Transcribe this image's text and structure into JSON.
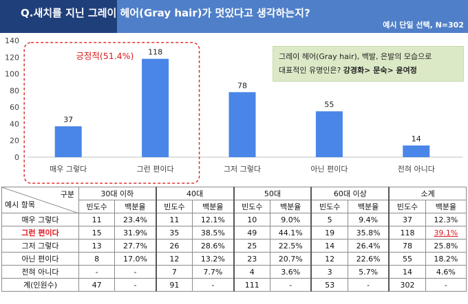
{
  "header": {
    "title": "Q.새치를 지닌 그레이 헤어(Gray hair)가 멋있다고 생각하는지?",
    "subtitle": "예시 단일 선택, N=302"
  },
  "note": {
    "line1": "그레이 헤어(Gray hair), 백발, 은발의 모습으로",
    "line2_prefix": "대표적인 유명인은? ",
    "line2_bold": "강경화> 문숙> 윤여정"
  },
  "positive_label": "긍정적(51.4%)",
  "chart_data": {
    "type": "bar",
    "categories": [
      "매우 그렇다",
      "그런 편이다",
      "그저 그렇다",
      "아닌 편이다",
      "전혀 아니다"
    ],
    "values": [
      37,
      118,
      78,
      55,
      14
    ],
    "ylim": [
      0,
      140
    ],
    "yticks": [
      0,
      20,
      40,
      60,
      80,
      100,
      120,
      140
    ],
    "bar_color": "#4a86e8",
    "grid": false
  },
  "table": {
    "corner_top": "구분",
    "corner_bottom": "예시 항목",
    "groups": [
      "30대 이하",
      "40대",
      "50대",
      "60대 이상",
      "소계"
    ],
    "sub_headers": [
      "빈도수",
      "백분율"
    ],
    "rows": [
      {
        "label": "매우 그렇다",
        "cells": [
          "11",
          "23.4%",
          "11",
          "12.1%",
          "10",
          "9.0%",
          "5",
          "9.4%",
          "37",
          "12.3%"
        ]
      },
      {
        "label": "그런 편이다",
        "cells": [
          "15",
          "31.9%",
          "35",
          "38.5%",
          "49",
          "44.1%",
          "19",
          "35.8%",
          "118",
          "39.1%"
        ]
      },
      {
        "label": "그저 그렇다",
        "cells": [
          "13",
          "27.7%",
          "26",
          "28.6%",
          "25",
          "22.5%",
          "14",
          "26.4%",
          "78",
          "25.8%"
        ]
      },
      {
        "label": "아닌 편이다",
        "cells": [
          "8",
          "17.0%",
          "12",
          "13.2%",
          "23",
          "20.7%",
          "12",
          "22.6%",
          "55",
          "18.2%"
        ]
      },
      {
        "label": "전혀 아니다",
        "cells": [
          "-",
          "-",
          "7",
          "7.7%",
          "4",
          "3.6%",
          "3",
          "5.7%",
          "14",
          "4.6%"
        ]
      },
      {
        "label": "계(인원수)",
        "cells": [
          "47",
          "-",
          "91",
          "-",
          "111",
          "-",
          "53",
          "-",
          "302",
          "-"
        ]
      }
    ]
  }
}
